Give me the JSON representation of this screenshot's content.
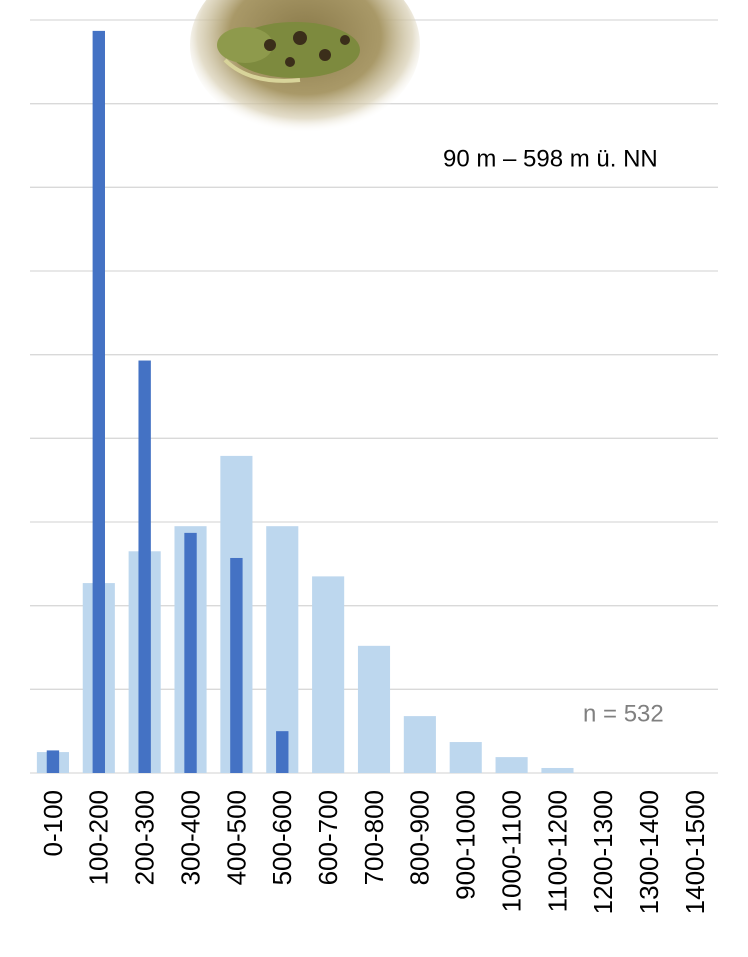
{
  "chart_data": {
    "type": "bar",
    "categories": [
      "0-100",
      "100-200",
      "200-300",
      "300-400",
      "400-500",
      "500-600",
      "600-700",
      "700-800",
      "800-900",
      "900-1000",
      "1000-1100",
      "1100-1200",
      "1200-1300",
      "1300-1400",
      "1400-1500"
    ],
    "series": [
      {
        "color": "#bdd7ee",
        "values": [
          0.25,
          2.27,
          2.65,
          2.95,
          3.79,
          2.95,
          2.35,
          1.52,
          0.68,
          0.37,
          0.19,
          0.06,
          0,
          0,
          0
        ]
      },
      {
        "color": "#4472c4",
        "values": [
          0.27,
          8.87,
          4.93,
          2.87,
          2.57,
          0.5,
          0,
          0,
          0,
          0,
          0,
          0,
          0,
          0,
          0
        ]
      }
    ],
    "ylim": [
      0,
      9
    ],
    "grid": true,
    "grid_step": 1,
    "annotations": [
      "90 m – 598 m ü. NN",
      "n = 532"
    ]
  }
}
